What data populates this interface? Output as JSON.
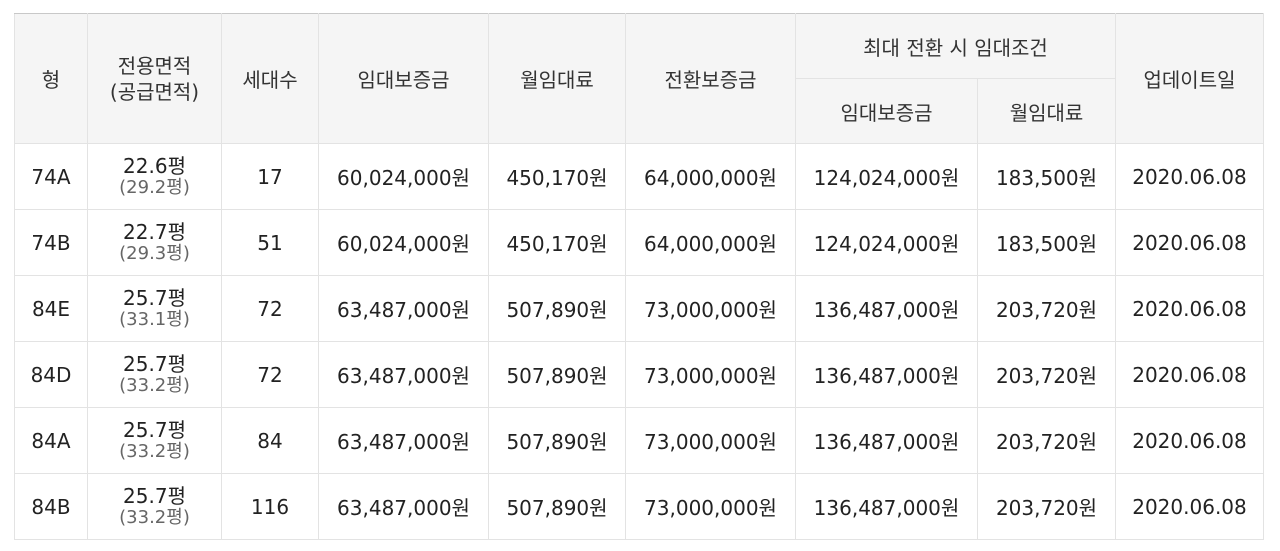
{
  "headers": {
    "type": "형",
    "area_line1": "전용면적",
    "area_line2": "(공급면적)",
    "households": "세대수",
    "deposit": "임대보증금",
    "monthly_rent": "월임대료",
    "conversion_deposit": "전환보증금",
    "max_group": "최대 전환 시 임대조건",
    "max_deposit": "임대보증금",
    "max_monthly_rent": "월임대료",
    "updated": "업데이트일"
  },
  "rows": [
    {
      "type": "74A",
      "area": "22.6평",
      "supply": "(29.2평)",
      "households": "17",
      "deposit": "60,024,000원",
      "rent": "450,170원",
      "conversion": "64,000,000원",
      "max_deposit": "124,024,000원",
      "max_rent": "183,500원",
      "updated": "2020.06.08"
    },
    {
      "type": "74B",
      "area": "22.7평",
      "supply": "(29.3평)",
      "households": "51",
      "deposit": "60,024,000원",
      "rent": "450,170원",
      "conversion": "64,000,000원",
      "max_deposit": "124,024,000원",
      "max_rent": "183,500원",
      "updated": "2020.06.08"
    },
    {
      "type": "84E",
      "area": "25.7평",
      "supply": "(33.1평)",
      "households": "72",
      "deposit": "63,487,000원",
      "rent": "507,890원",
      "conversion": "73,000,000원",
      "max_deposit": "136,487,000원",
      "max_rent": "203,720원",
      "updated": "2020.06.08"
    },
    {
      "type": "84D",
      "area": "25.7평",
      "supply": "(33.2평)",
      "households": "72",
      "deposit": "63,487,000원",
      "rent": "507,890원",
      "conversion": "73,000,000원",
      "max_deposit": "136,487,000원",
      "max_rent": "203,720원",
      "updated": "2020.06.08"
    },
    {
      "type": "84A",
      "area": "25.7평",
      "supply": "(33.2평)",
      "households": "84",
      "deposit": "63,487,000원",
      "rent": "507,890원",
      "conversion": "73,000,000원",
      "max_deposit": "136,487,000원",
      "max_rent": "203,720원",
      "updated": "2020.06.08"
    },
    {
      "type": "84B",
      "area": "25.7평",
      "supply": "(33.2평)",
      "households": "116",
      "deposit": "63,487,000원",
      "rent": "507,890원",
      "conversion": "73,000,000원",
      "max_deposit": "136,487,000원",
      "max_rent": "203,720원",
      "updated": "2020.06.08"
    }
  ]
}
